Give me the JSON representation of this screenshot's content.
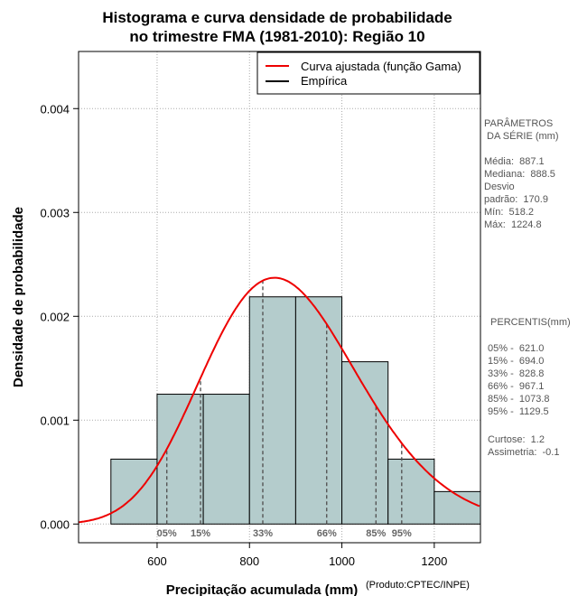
{
  "chart_data": {
    "type": "histogram",
    "title": [
      "Histograma e curva densidade de probabilidade",
      "no trimestre FMA (1981-2010): Região 10"
    ],
    "xlabel": "Precipitação acumulada (mm)",
    "ylabel": "Densidade de probabilidade",
    "credit": "(Produto:CPTEC/INPE)",
    "xlim": [
      430,
      1300
    ],
    "ylim": [
      -0.00018,
      0.00455
    ],
    "xticks": [
      600,
      800,
      1000,
      1200
    ],
    "yticks": [
      0.0,
      0.001,
      0.002,
      0.003,
      0.004
    ],
    "ytick_labels": [
      "0.000",
      "0.001",
      "0.002",
      "0.003",
      "0.004"
    ],
    "bins": [
      {
        "from": 500,
        "to": 600,
        "density": 0.000625
      },
      {
        "from": 600,
        "to": 700,
        "density": 0.00125
      },
      {
        "from": 700,
        "to": 800,
        "density": 0.00125
      },
      {
        "from": 800,
        "to": 900,
        "density": 0.0021875
      },
      {
        "from": 900,
        "to": 1000,
        "density": 0.0021875
      },
      {
        "from": 1000,
        "to": 1100,
        "density": 0.0015625
      },
      {
        "from": 1100,
        "to": 1200,
        "density": 0.000625
      },
      {
        "from": 1200,
        "to": 1300,
        "density": 0.0003125
      }
    ],
    "gamma_fit": {
      "mean": 887.1,
      "sd": 170.9
    },
    "percentiles": [
      {
        "label": "05%",
        "value": 621.0
      },
      {
        "label": "15%",
        "value": 694.0
      },
      {
        "label": "33%",
        "value": 828.8
      },
      {
        "label": "66%",
        "value": 967.1
      },
      {
        "label": "85%",
        "value": 1073.8
      },
      {
        "label": "95%",
        "value": 1129.5
      }
    ],
    "legend": [
      {
        "label": "Curva ajustada (função Gama)",
        "color": "#ee0000"
      },
      {
        "label": "Empírica",
        "color": "#000000"
      }
    ],
    "colors": {
      "bar_fill": "#b4cccc",
      "curve": "#ee0000",
      "grid": "#aaaaaa",
      "percentile_line": "#555555"
    }
  },
  "side_panel": {
    "params_heading": [
      "PARÂMETROS",
      " DA SÉRIE (mm)"
    ],
    "params": [
      "Média:  887.1",
      "Mediana:  888.5",
      "Desvio",
      "padrão:  170.9",
      "Mín:  518.2",
      "Máx:  1224.8"
    ],
    "percentis_heading": " PERCENTIS(mm)",
    "percentis": [
      "05% -  621.0",
      "15% -  694.0",
      "33% -  828.8",
      "66% -  967.1",
      "85% -  1073.8",
      "95% -  1129.5"
    ],
    "stats": [
      "Curtose:  1.2",
      "Assimetria:  -0.1"
    ]
  }
}
